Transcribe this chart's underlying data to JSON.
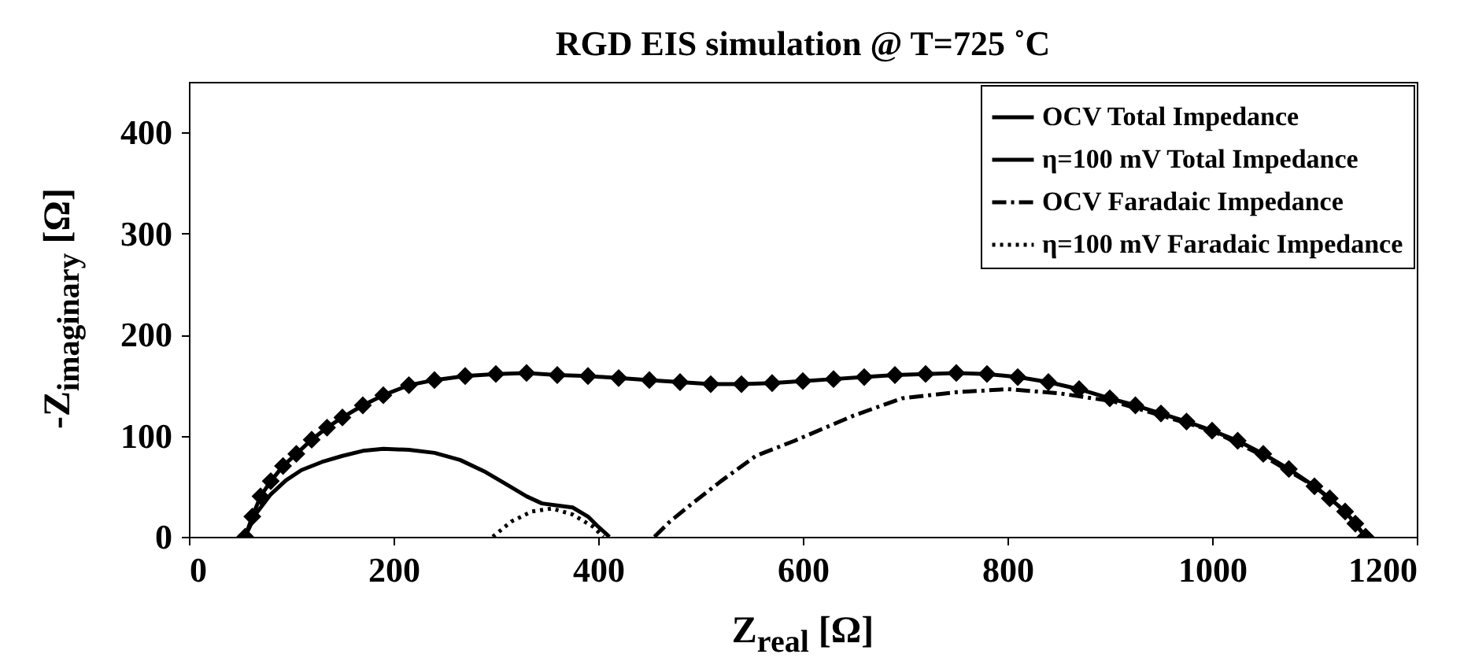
{
  "chart_data": {
    "type": "line",
    "title": "RGD EIS simulation @ T=725 ˚C",
    "xlabel": "Z$_{real}$ [Ω]",
    "ylabel": "-Z$_{imaginary}$ [Ω]",
    "xlim": [
      0,
      1200
    ],
    "xticks": [
      0,
      200,
      400,
      600,
      800,
      1000,
      1200
    ],
    "ylim": [
      0,
      450
    ],
    "yticks": [
      0,
      100,
      200,
      300,
      400
    ],
    "grid": false,
    "legend": "top right",
    "series": [
      {
        "name": "OCV Total Impedance",
        "color": "#000000",
        "line_style": "solid",
        "marker": "diamond",
        "x": [
          55,
          62,
          70,
          80,
          92,
          105,
          120,
          135,
          150,
          170,
          190,
          215,
          240,
          270,
          300,
          330,
          360,
          390,
          420,
          450,
          480,
          510,
          540,
          570,
          600,
          630,
          660,
          690,
          720,
          750,
          780,
          810,
          840,
          870,
          900,
          925,
          950,
          975,
          1000,
          1025,
          1050,
          1075,
          1100,
          1115,
          1130,
          1140,
          1150
        ],
        "values": [
          0,
          20,
          40,
          55,
          70,
          82,
          96,
          108,
          118,
          130,
          140,
          150,
          155,
          159,
          161,
          162,
          160,
          159,
          157,
          155,
          153,
          151,
          151,
          152,
          154,
          156,
          158,
          160,
          161,
          162,
          161,
          158,
          153,
          146,
          137,
          130,
          122,
          114,
          105,
          95,
          82,
          67,
          50,
          38,
          25,
          13,
          0
        ]
      },
      {
        "name": "η=100 mV Total Impedance",
        "color": "#000000",
        "line_style": "solid",
        "x": [
          55,
          65,
          80,
          95,
          110,
          130,
          150,
          170,
          190,
          215,
          240,
          265,
          290,
          310,
          330,
          345,
          360,
          375,
          390,
          400,
          411
        ],
        "values": [
          0,
          22,
          42,
          56,
          66,
          74,
          80,
          85,
          87,
          86,
          83,
          76,
          64,
          52,
          40,
          33,
          31,
          29,
          20,
          10,
          0
        ]
      },
      {
        "name": "OCV Faradaic Impedance",
        "color": "#000000",
        "line_style": "dashdot",
        "x": [
          455,
          470,
          492,
          520,
          554,
          592,
          650,
          697,
          750,
          800,
          850,
          903,
          950,
          1000,
          1050,
          1100,
          1130,
          1150
        ],
        "values": [
          0,
          15,
          33,
          55,
          80,
          95,
          120,
          137,
          143,
          146,
          142,
          134,
          120,
          105,
          80,
          50,
          25,
          0
        ]
      },
      {
        "name": "η=100 mV Faradaic Impedance",
        "color": "#000000",
        "line_style": "dotted",
        "x": [
          297,
          315,
          335,
          355,
          375,
          395,
          405
        ],
        "values": [
          0,
          15,
          25,
          28,
          22,
          10,
          0
        ]
      }
    ]
  }
}
